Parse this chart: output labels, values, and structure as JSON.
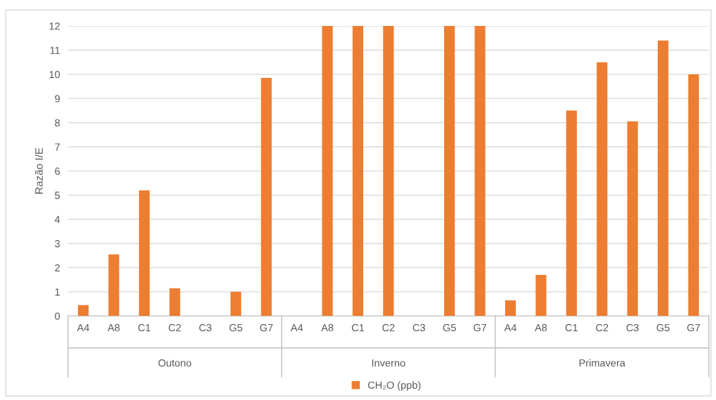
{
  "chart_data": {
    "type": "bar",
    "ylabel": "Razão I/E",
    "categories": [
      "A4",
      "A8",
      "C1",
      "C2",
      "C3",
      "G5",
      "G7",
      "A4",
      "A8",
      "C1",
      "C2",
      "C3",
      "G5",
      "G7",
      "A4",
      "A8",
      "C1",
      "C2",
      "C3",
      "G5",
      "G7"
    ],
    "annotations": [
      "Outono",
      "Inverno",
      "Primavera"
    ],
    "series": [
      {
        "name": "CH₂O (ppb)",
        "color": "#ed7d31",
        "values": [
          0.45,
          2.55,
          5.2,
          1.15,
          null,
          1.0,
          9.85,
          null,
          12,
          12,
          12,
          null,
          12,
          12,
          0.65,
          1.7,
          8.5,
          10.5,
          8.05,
          11.4,
          10.0
        ]
      }
    ],
    "ylim": [
      0,
      12
    ],
    "yticks": [
      0,
      1,
      2,
      3,
      4,
      5,
      6,
      7,
      8,
      9,
      10,
      11,
      12
    ],
    "grid": "y",
    "legend": "bottom"
  }
}
